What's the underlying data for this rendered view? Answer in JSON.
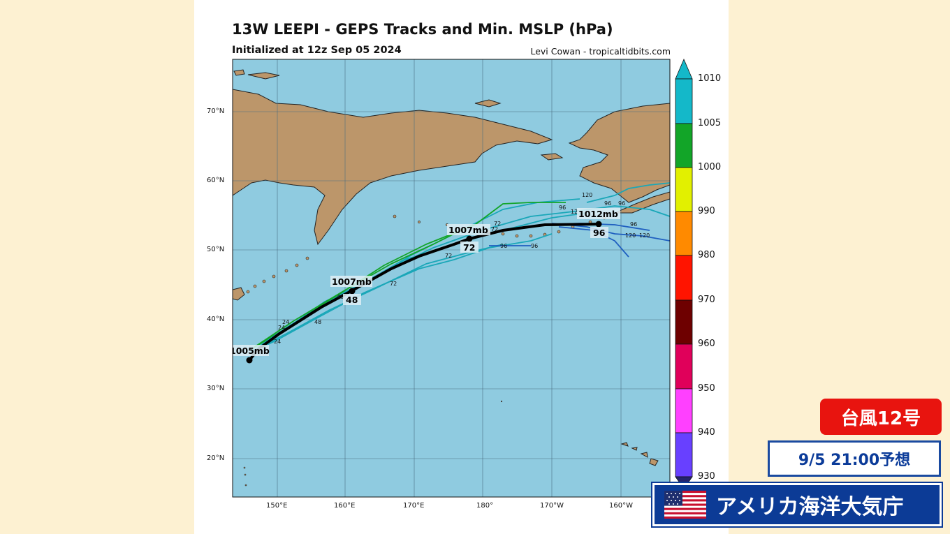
{
  "title": "13W LEEPI - GEPS Tracks and Min. MSLP (hPa)",
  "subtitle": "Initialized at 12z Sep 05 2024",
  "credit": "Levi Cowan - tropicaltidbits.com",
  "lat_labels": [
    "70°N",
    "60°N",
    "50°N",
    "40°N",
    "30°N",
    "20°N"
  ],
  "lon_labels": [
    "150°E",
    "160°E",
    "170°E",
    "180°",
    "170°W",
    "160°W"
  ],
  "colorbar": {
    "levels": [
      "1010",
      "1005",
      "1000",
      "990",
      "980",
      "970",
      "960",
      "950",
      "940",
      "930"
    ],
    "colors": [
      "#14b8c9",
      "#12a528",
      "#e2f000",
      "#ff8a00",
      "#ff1400",
      "#6e0000",
      "#e0005a",
      "#ff40ff",
      "#6840ff",
      "#24246e"
    ]
  },
  "points": [
    {
      "pressure": "1005mb",
      "hour": ""
    },
    {
      "pressure": "1007mb",
      "hour": "48"
    },
    {
      "pressure": "1007mb",
      "hour": "72"
    },
    {
      "pressure": "1012mb",
      "hour": "96"
    }
  ],
  "hour_marks": [
    "24",
    "24",
    "24",
    "48",
    "48",
    "72",
    "72",
    "72",
    "72",
    "96",
    "96",
    "96",
    "96",
    "96",
    "96",
    "120",
    "120",
    "120",
    "12"
  ],
  "badges": {
    "typhoon": "台風12号",
    "forecast_time": "9/5 21:00予想",
    "source": "アメリカ海洋大気庁"
  },
  "colors": {
    "ocean": "#8fcbe0",
    "land": "#bc966a",
    "ensemble_teal": "#1aa7b8",
    "ensemble_blue": "#1f5fc0",
    "mean_track": "#000000"
  }
}
